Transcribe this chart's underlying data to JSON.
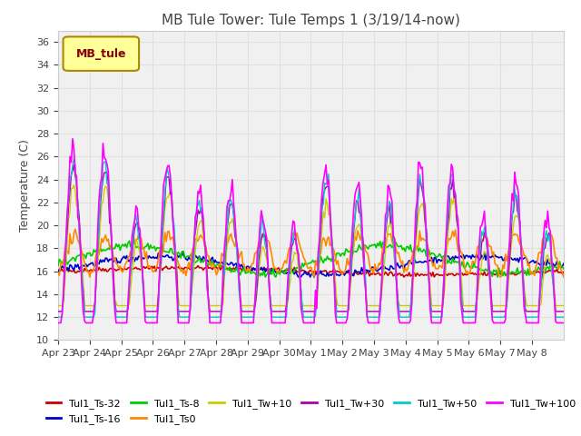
{
  "title": "MB Tule Tower: Tule Temps 1 (3/19/14-now)",
  "xlabel": "",
  "ylabel": "Temperature (C)",
  "ylim": [
    10,
    37
  ],
  "yticks": [
    10,
    12,
    14,
    16,
    18,
    20,
    22,
    24,
    26,
    28,
    30,
    32,
    34,
    36
  ],
  "legend_label": "MB_tule",
  "series_labels": [
    "Tul1_Ts-32",
    "Tul1_Ts-16",
    "Tul1_Ts-8",
    "Tul1_Ts0",
    "Tul1_Tw+10",
    "Tul1_Tw+30",
    "Tul1_Tw+50",
    "Tul1_Tw+100"
  ],
  "series_colors": [
    "#cc0000",
    "#0000cc",
    "#00cc00",
    "#ff8800",
    "#cccc00",
    "#aa00aa",
    "#00cccc",
    "#ff00ff"
  ],
  "background_color": "#ffffff",
  "grid_color": "#e0e0e0",
  "x_labels": [
    "Apr 23",
    "Apr 24",
    "Apr 25",
    "Apr 26",
    "Apr 27",
    "Apr 28",
    "Apr 29",
    "Apr 30",
    "May 1",
    "May 2",
    "May 3",
    "May 4",
    "May 5",
    "May 6",
    "May 7",
    "May 8"
  ]
}
